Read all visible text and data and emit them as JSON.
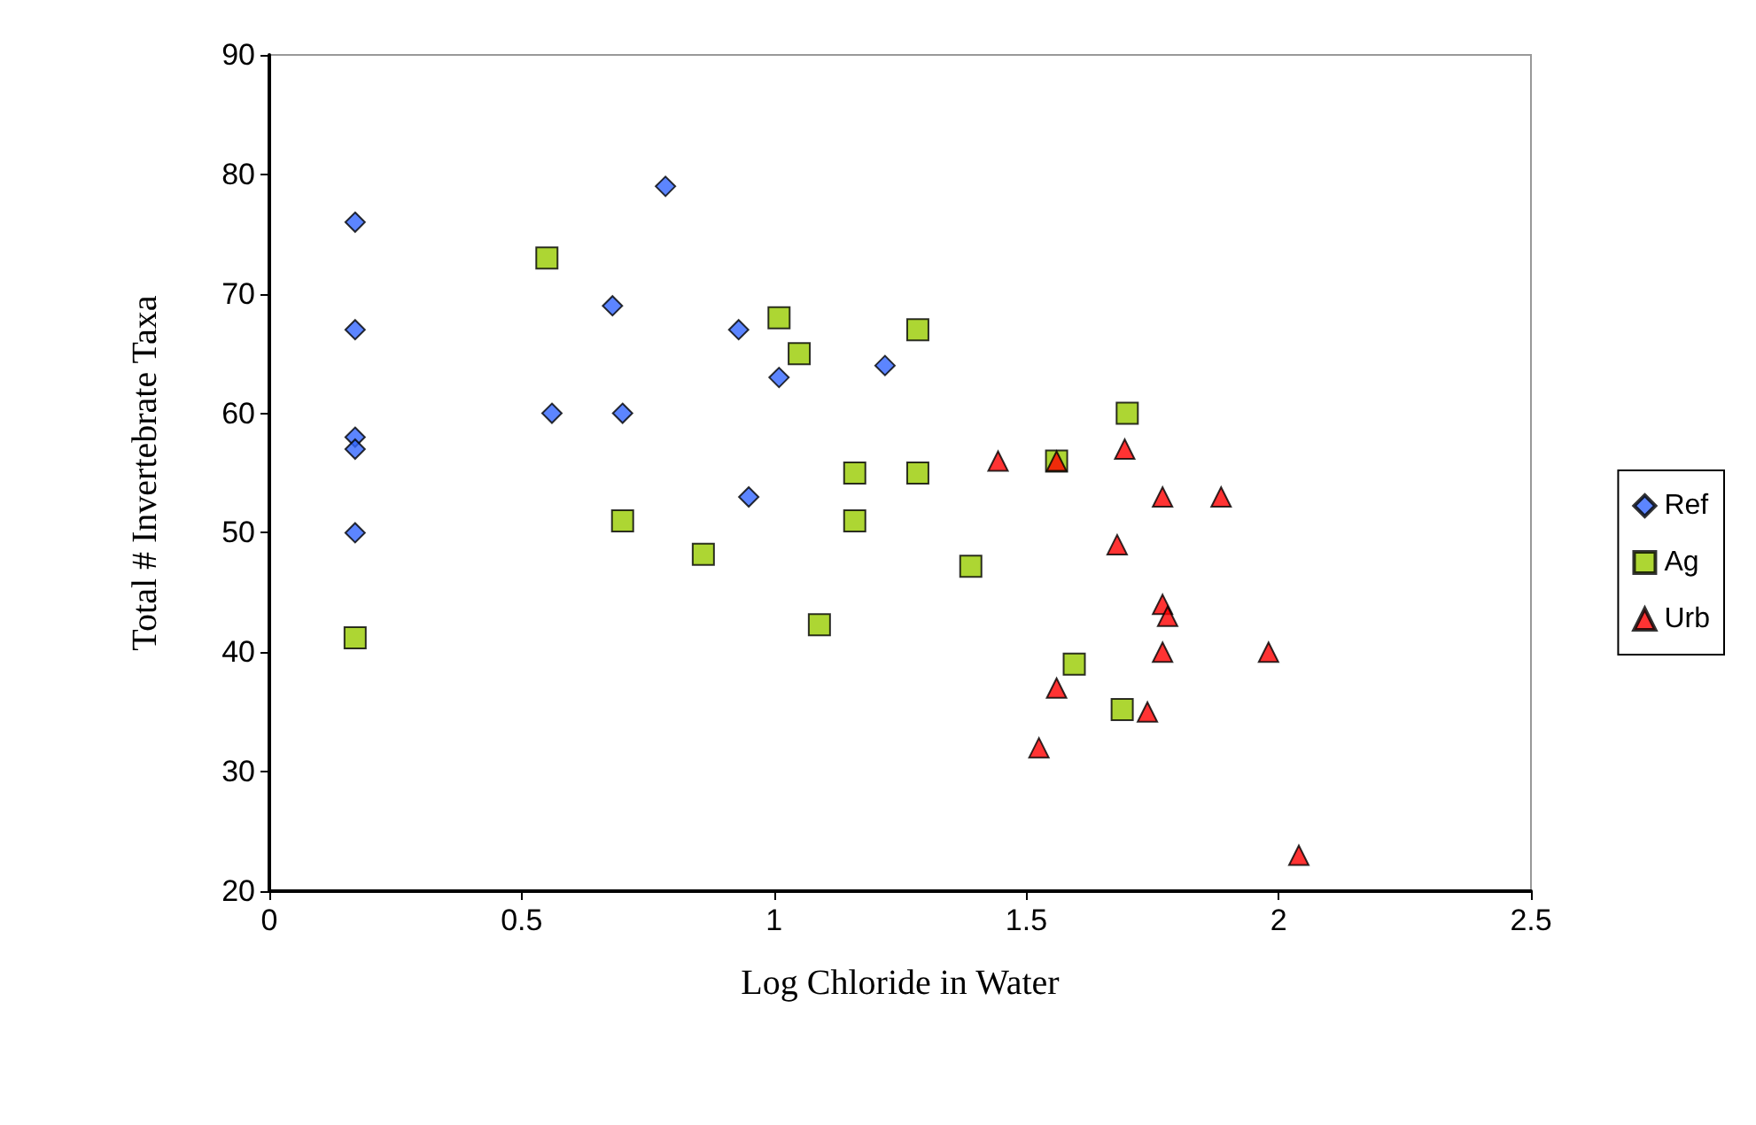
{
  "chart_data": {
    "type": "scatter",
    "xlabel": "Log Chloride in Water",
    "ylabel": "Total # Invertebrate Taxa",
    "xlim": [
      0,
      2.5
    ],
    "xticks": [
      0,
      0.5,
      1,
      1.5,
      2,
      2.5
    ],
    "ylim": [
      20,
      90
    ],
    "yticks": [
      20,
      30,
      40,
      50,
      60,
      70,
      80,
      90
    ],
    "grid": false,
    "legend": "right",
    "series": [
      {
        "name": "Ref",
        "color": "#3366ff",
        "marker": "diamond",
        "x": [
          0.17,
          0.17,
          0.17,
          0.17,
          0.17,
          0.785,
          0.68,
          0.56,
          0.7,
          0.93,
          1.01,
          0.95,
          1.22
        ],
        "values": [
          76,
          67,
          58,
          57,
          50,
          79,
          69,
          60,
          60,
          67,
          63,
          53,
          64
        ]
      },
      {
        "name": "Ag",
        "color": "#99cc00",
        "marker": "square",
        "x": [
          0.17,
          0.55,
          0.7,
          0.86,
          1.01,
          1.05,
          1.09,
          1.16,
          1.16,
          1.285,
          1.285,
          1.39,
          1.56,
          1.7,
          1.595,
          1.69
        ],
        "values": [
          41.2,
          73,
          51,
          48.2,
          68,
          65,
          42.3,
          55,
          51,
          55,
          67,
          47.2,
          56,
          60,
          39,
          35.2
        ]
      },
      {
        "name": "Urb",
        "color": "#ff0000",
        "marker": "triangle",
        "x": [
          1.444,
          1.56,
          1.695,
          1.77,
          1.886,
          1.68,
          1.77,
          1.78,
          1.77,
          1.98,
          1.56,
          1.74,
          1.525,
          2.04
        ],
        "values": [
          56,
          56,
          57,
          53,
          53,
          49,
          44,
          43,
          40,
          40,
          37,
          35,
          32,
          23
        ]
      }
    ]
  }
}
